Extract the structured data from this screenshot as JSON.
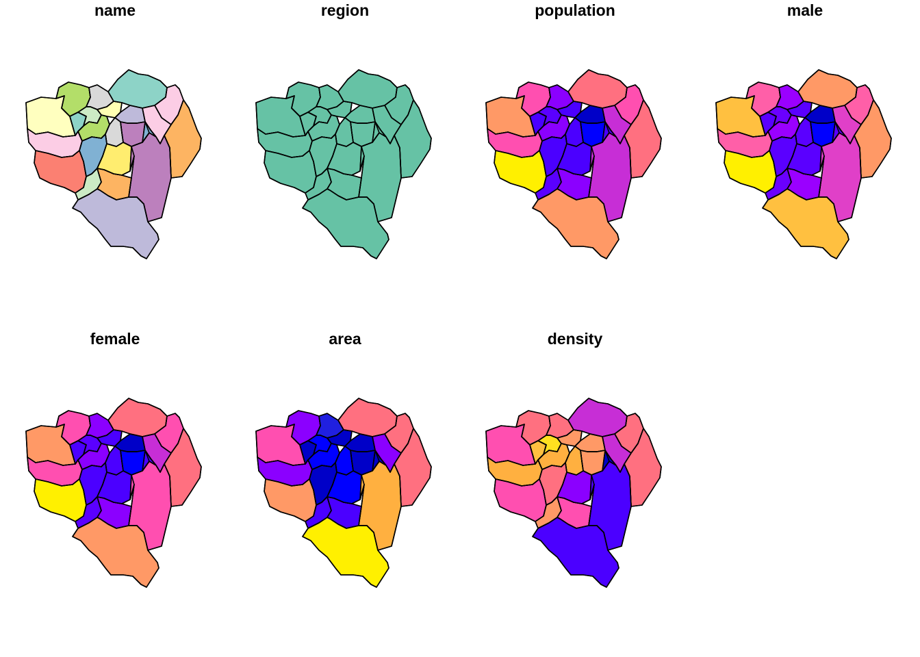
{
  "figure": {
    "panels": [
      {
        "title": "name",
        "fills": [
          "#FFFFBF",
          "#B3DE69",
          "#D9D9D9",
          "#8DD3C7",
          "#FCCDE5",
          "#FDB462",
          "#FCCDE5",
          "#8DD3C7",
          "#CCEBC5",
          "#FFFFB3",
          "#FCCDE5",
          "#B3DE69",
          "#BEBADA",
          "#BC80BD",
          "#D9D9D9",
          "#FB8072",
          "#80B1D3",
          "#CCEBC5",
          "#FFED6F",
          "#FDB462",
          "#BC80BD",
          "#BEBADA",
          "#80B1D3"
        ]
      },
      {
        "title": "region",
        "fills": [
          "#66C2A5",
          "#66C2A5",
          "#66C2A5",
          "#66C2A5",
          "#66C2A5",
          "#66C2A5",
          "#66C2A5",
          "#66C2A5",
          "#66C2A5",
          "#66C2A5",
          "#66C2A5",
          "#66C2A5",
          "#66C2A5",
          "#66C2A5",
          "#66C2A5",
          "#66C2A5",
          "#66C2A5",
          "#66C2A5",
          "#66C2A5",
          "#66C2A5",
          "#66C2A5",
          "#66C2A5",
          "#66C2A5"
        ]
      },
      {
        "title": "population",
        "fills": [
          "#FF9966",
          "#FF4FB0",
          "#8B00FF",
          "#FF7080",
          "#FF4FB0",
          "#FF7080",
          "#C72ED6",
          "#4B00FF",
          "#5A00FF",
          "#4B00FF",
          "#FF4FB0",
          "#8B00FF",
          "#0000C8",
          "#0000FF",
          "#4B00FF",
          "#FFF000",
          "#4B00FF",
          "#5A00FF",
          "#4B00FF",
          "#8B00FF",
          "#C72ED6",
          "#FF9966",
          "#4B00FF"
        ]
      },
      {
        "title": "male",
        "fills": [
          "#FFC040",
          "#FF5FA8",
          "#9A00FF",
          "#FF9966",
          "#FF5FA8",
          "#FF9966",
          "#E040C8",
          "#5A00FF",
          "#6A00FF",
          "#5A00FF",
          "#FF5FA8",
          "#9A00FF",
          "#0000C8",
          "#0000FF",
          "#5A00FF",
          "#FFF000",
          "#5A00FF",
          "#6A00FF",
          "#5A00FF",
          "#9A00FF",
          "#E040C8",
          "#FFC040",
          "#5A00FF"
        ]
      },
      {
        "title": "female",
        "fills": [
          "#FF9966",
          "#FF4FB0",
          "#8B00FF",
          "#FF7080",
          "#FF4FB0",
          "#FF7080",
          "#C72ED6",
          "#4B00FF",
          "#5A00FF",
          "#4B00FF",
          "#FF4FB0",
          "#8B00FF",
          "#0000C8",
          "#0000FF",
          "#4B00FF",
          "#FFF000",
          "#4B00FF",
          "#5A00FF",
          "#4B00FF",
          "#8B00FF",
          "#FF4FB0",
          "#FF9966",
          "#4B00FF"
        ]
      },
      {
        "title": "area",
        "fills": [
          "#FF4FB0",
          "#8B00FF",
          "#2020E0",
          "#FF7080",
          "#FF7080",
          "#FF7080",
          "#8B00FF",
          "#0000C8",
          "#0000FF",
          "#0000C8",
          "#8B00FF",
          "#0000FF",
          "#0000C8",
          "#0000C8",
          "#0000FF",
          "#FF9966",
          "#0000C8",
          "#4B00FF",
          "#0000FF",
          "#4B00FF",
          "#FFB040",
          "#FFF000",
          "#0000C8"
        ]
      },
      {
        "title": "density",
        "fills": [
          "#FF4FB0",
          "#FF7080",
          "#FF7080",
          "#C72ED6",
          "#FF7080",
          "#FF7080",
          "#C72ED6",
          "#FFC040",
          "#FFE020",
          "#FF9966",
          "#FFB040",
          "#FFB040",
          "#FF9966",
          "#FF9966",
          "#FFB040",
          "#FF4FB0",
          "#FF7080",
          "#FF9966",
          "#8B00FF",
          "#FF4FB0",
          "#4B00FF",
          "#4B00FF",
          "#0000C8"
        ]
      }
    ]
  }
}
